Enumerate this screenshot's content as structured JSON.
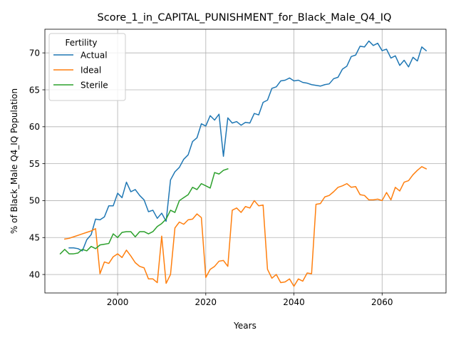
{
  "chart_data": {
    "type": "line",
    "title": "Score_1_in_CAPITAL_PUNISHMENT_for_Black_Male_Q4_IQ",
    "xlabel": "Years",
    "ylabel": "% of Black_Male Q4_IQ Population",
    "xlim": [
      1983.5,
      2074.5
    ],
    "ylim": [
      37.5,
      73.2
    ],
    "xticks": [
      2000,
      2020,
      2040,
      2060
    ],
    "yticks": [
      40,
      45,
      50,
      55,
      60,
      65,
      70
    ],
    "grid": true,
    "legend": {
      "title": "Fertility",
      "position": "top-left"
    },
    "colors": {
      "Actual": "#1f77b4",
      "Ideal": "#ff7f0e",
      "Sterile": "#2ca02c"
    },
    "series": [
      {
        "name": "Actual",
        "x": [
          1989,
          1990,
          1991,
          1992,
          1993,
          1994,
          1995,
          1996,
          1997,
          1998,
          1999,
          2000,
          2001,
          2002,
          2003,
          2004,
          2005,
          2006,
          2007,
          2008,
          2009,
          2010,
          2011,
          2012,
          2013,
          2014,
          2015,
          2016,
          2017,
          2018,
          2019,
          2020,
          2021,
          2022,
          2023,
          2024,
          2025,
          2026,
          2027,
          2028,
          2029,
          2030,
          2031,
          2032,
          2033,
          2034,
          2035,
          2036,
          2037,
          2038,
          2039,
          2040,
          2041,
          2042,
          2043,
          2044,
          2045,
          2046,
          2047,
          2048,
          2049,
          2050,
          2051,
          2052,
          2053,
          2054,
          2055,
          2056,
          2057,
          2058,
          2059,
          2060,
          2061,
          2062,
          2063,
          2064,
          2065,
          2066,
          2067,
          2068,
          2069,
          2070
        ],
        "values": [
          43.6,
          43.6,
          43.5,
          43.2,
          44.7,
          45.4,
          47.5,
          47.4,
          47.8,
          49.3,
          49.3,
          51.0,
          50.4,
          52.5,
          51.2,
          51.5,
          50.7,
          50.1,
          48.5,
          48.7,
          47.6,
          48.3,
          47.2,
          52.8,
          53.9,
          54.5,
          55.6,
          56.2,
          58.0,
          58.5,
          60.4,
          60.1,
          61.5,
          60.9,
          61.7,
          56.0,
          61.2,
          60.5,
          60.7,
          60.2,
          60.6,
          60.5,
          61.8,
          61.6,
          63.3,
          63.6,
          65.2,
          65.4,
          66.2,
          66.3,
          66.6,
          66.2,
          66.3,
          66.0,
          65.9,
          65.7,
          65.6,
          65.5,
          65.7,
          65.8,
          66.5,
          66.7,
          67.8,
          68.2,
          69.5,
          69.7,
          70.9,
          70.8,
          71.6,
          71.0,
          71.3,
          70.3,
          70.5,
          69.3,
          69.6,
          68.3,
          69.0,
          68.1,
          69.4,
          68.9,
          70.8,
          70.3
        ]
      },
      {
        "name": "Ideal",
        "x": [
          1988,
          1989,
          1990,
          1991,
          1992,
          1993,
          1994,
          1995,
          1996,
          1997,
          1998,
          1999,
          2000,
          2001,
          2002,
          2003,
          2004,
          2005,
          2006,
          2007,
          2008,
          2009,
          2010,
          2011,
          2012,
          2013,
          2014,
          2015,
          2016,
          2017,
          2018,
          2019,
          2020,
          2021,
          2022,
          2023,
          2024,
          2025,
          2026,
          2027,
          2028,
          2029,
          2030,
          2031,
          2032,
          2033,
          2034,
          2035,
          2036,
          2037,
          2038,
          2039,
          2040,
          2041,
          2042,
          2043,
          2044,
          2045,
          2046,
          2047,
          2048,
          2049,
          2050,
          2051,
          2052,
          2053,
          2054,
          2055,
          2056,
          2057,
          2058,
          2059,
          2060,
          2061,
          2062,
          2063,
          2064,
          2065,
          2066,
          2067,
          2068,
          2069,
          2070
        ],
        "values": [
          44.8,
          44.9,
          45.1,
          45.3,
          45.5,
          45.7,
          45.9,
          46.2,
          40.1,
          41.7,
          41.5,
          42.4,
          42.8,
          42.3,
          43.3,
          42.5,
          41.6,
          41.1,
          40.9,
          39.4,
          39.4,
          38.9,
          45.2,
          38.8,
          40.0,
          46.3,
          47.1,
          46.8,
          47.4,
          47.5,
          48.2,
          47.7,
          39.6,
          40.7,
          41.1,
          41.8,
          41.9,
          41.1,
          48.7,
          49.0,
          48.4,
          49.2,
          49.0,
          50.0,
          49.3,
          49.4,
          40.7,
          39.5,
          40.0,
          38.9,
          39.0,
          39.4,
          38.4,
          39.4,
          39.1,
          40.2,
          40.1,
          49.5,
          49.6,
          50.5,
          50.7,
          51.2,
          51.8,
          52.0,
          52.3,
          51.8,
          51.9,
          50.8,
          50.7,
          50.1,
          50.1,
          50.2,
          50.0,
          51.1,
          50.1,
          51.8,
          51.3,
          52.5,
          52.7,
          53.5,
          54.1,
          54.6,
          54.3
        ]
      },
      {
        "name": "Sterile",
        "x": [
          1987,
          1988,
          1989,
          1990,
          1991,
          1992,
          1993,
          1994,
          1995,
          1996,
          1997,
          1998,
          1999,
          2000,
          2001,
          2002,
          2003,
          2004,
          2005,
          2006,
          2007,
          2008,
          2009,
          2010,
          2011,
          2012,
          2013,
          2014,
          2015,
          2016,
          2017,
          2018,
          2019,
          2020,
          2021,
          2022,
          2023,
          2024,
          2025
        ],
        "values": [
          42.8,
          43.4,
          42.8,
          42.8,
          42.9,
          43.4,
          43.2,
          43.8,
          43.5,
          44.0,
          44.1,
          44.2,
          45.5,
          45.0,
          45.7,
          45.8,
          45.8,
          45.1,
          45.8,
          45.8,
          45.5,
          45.8,
          46.5,
          46.9,
          47.5,
          48.7,
          48.4,
          50.0,
          50.4,
          50.8,
          51.8,
          51.5,
          52.3,
          52.0,
          51.7,
          53.8,
          53.6,
          54.1,
          54.3
        ]
      }
    ]
  }
}
